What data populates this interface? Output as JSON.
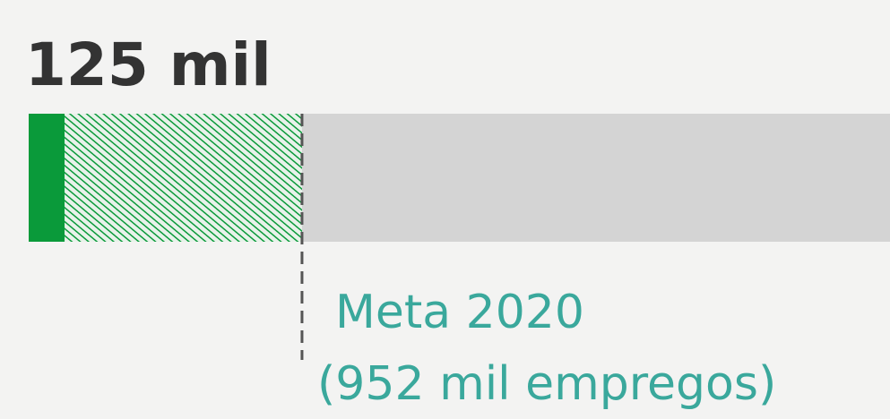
{
  "chart_data": {
    "type": "progress",
    "values": [
      125
    ],
    "value_labels": [
      "125 mil"
    ],
    "target": 952,
    "target_labels": [
      "Meta 2020",
      "(952 mil empregos)"
    ],
    "xlim": [
      0,
      3000
    ],
    "color": "#0a9a3a",
    "target_color": "#0a9a3a",
    "track_color": "#d4d4d4"
  }
}
